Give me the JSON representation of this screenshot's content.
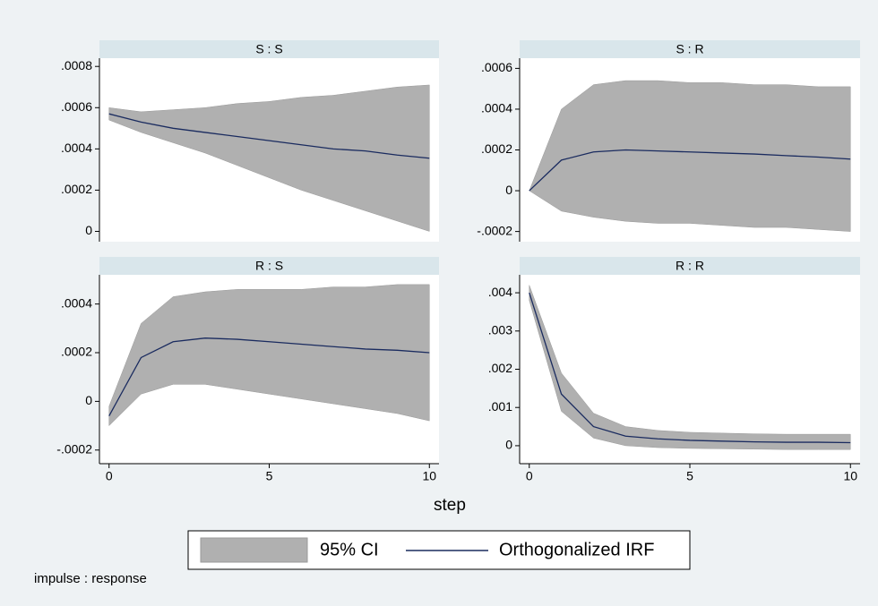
{
  "chart_data": [
    {
      "type": "irf",
      "title": "S : S",
      "x": [
        0,
        1,
        2,
        3,
        4,
        5,
        6,
        7,
        8,
        9,
        10
      ],
      "values": [
        0.00057,
        0.00053,
        0.0005,
        0.00048,
        0.00046,
        0.00044,
        0.00042,
        0.0004,
        0.00039,
        0.00037,
        0.000355
      ],
      "upper": [
        0.0006,
        0.00058,
        0.00059,
        0.0006,
        0.00062,
        0.00063,
        0.00065,
        0.00066,
        0.00068,
        0.0007,
        0.00071
      ],
      "lower": [
        0.00054,
        0.00048,
        0.00043,
        0.00038,
        0.00032,
        0.00026,
        0.0002,
        0.00015,
        0.0001,
        5e-05,
        0
      ],
      "xlim": [
        -0.3,
        10.3
      ],
      "ylim": [
        -5e-05,
        0.00084
      ],
      "yticks": [
        0,
        {
          "value": 0.0002,
          "label": ".0002"
        },
        {
          "value": 0.0004,
          "label": ".0004"
        },
        {
          "value": 0.0006,
          "label": ".0006"
        },
        {
          "value": 0.0008,
          "label": ".0008"
        }
      ]
    },
    {
      "type": "irf",
      "title": "S : R",
      "x": [
        0,
        1,
        2,
        3,
        4,
        5,
        6,
        7,
        8,
        9,
        10
      ],
      "values": [
        0,
        0.00015,
        0.00019,
        0.0002,
        0.000195,
        0.00019,
        0.000185,
        0.00018,
        0.000172,
        0.000165,
        0.000155
      ],
      "upper": [
        0,
        0.0004,
        0.00052,
        0.00054,
        0.00054,
        0.00053,
        0.00053,
        0.00052,
        0.00052,
        0.00051,
        0.00051
      ],
      "lower": [
        0,
        -0.0001,
        -0.00013,
        -0.00015,
        -0.00016,
        -0.00016,
        -0.00017,
        -0.00018,
        -0.00018,
        -0.00019,
        -0.0002
      ],
      "xlim": [
        -0.3,
        10.3
      ],
      "ylim": [
        -0.00025,
        0.00065
      ],
      "yticks": [
        {
          "value": -0.0002,
          "label": "-.0002"
        },
        0,
        {
          "value": 0.0002,
          "label": ".0002"
        },
        {
          "value": 0.0004,
          "label": ".0004"
        },
        {
          "value": 0.0006,
          "label": ".0006"
        }
      ]
    },
    {
      "type": "irf",
      "title": "R : S",
      "x": [
        0,
        1,
        2,
        3,
        4,
        5,
        6,
        7,
        8,
        9,
        10
      ],
      "values": [
        -6e-05,
        0.00018,
        0.000245,
        0.00026,
        0.000255,
        0.000245,
        0.000235,
        0.000225,
        0.000215,
        0.00021,
        0.0002
      ],
      "upper": [
        -2e-05,
        0.00032,
        0.00043,
        0.00045,
        0.00046,
        0.00046,
        0.00046,
        0.00047,
        0.00047,
        0.00048,
        0.00048
      ],
      "lower": [
        -0.0001,
        3e-05,
        7e-05,
        7e-05,
        5e-05,
        3e-05,
        1e-05,
        -1e-05,
        -3e-05,
        -5e-05,
        -8e-05
      ],
      "xlim": [
        -0.3,
        10.3
      ],
      "ylim": [
        -0.000256,
        0.00052
      ],
      "xticks": [
        0,
        5,
        10
      ],
      "yticks": [
        {
          "value": -0.0002,
          "label": "-.0002"
        },
        0,
        {
          "value": 0.0002,
          "label": ".0002"
        },
        {
          "value": 0.0004,
          "label": ".0004"
        }
      ]
    },
    {
      "type": "irf",
      "title": "R : R",
      "x": [
        0,
        1,
        2,
        3,
        4,
        5,
        6,
        7,
        8,
        9,
        10
      ],
      "values": [
        0.004,
        0.00135,
        0.0005,
        0.00025,
        0.00018,
        0.00014,
        0.00012,
        0.0001,
        9e-05,
        9e-05,
        8e-05
      ],
      "upper": [
        0.0042,
        0.0019,
        0.00085,
        0.0005,
        0.0004,
        0.00035,
        0.00033,
        0.00031,
        0.0003,
        0.0003,
        0.0003
      ],
      "lower": [
        0.0038,
        0.0009,
        0.0002,
        0,
        -5e-05,
        -7e-05,
        -8e-05,
        -9e-05,
        -0.0001,
        -0.0001,
        -0.0001
      ],
      "xlim": [
        -0.3,
        10.3
      ],
      "ylim": [
        -0.00047,
        0.00447
      ],
      "xticks": [
        0,
        5,
        10
      ],
      "yticks": [
        0,
        {
          "value": 0.001,
          "label": ".001"
        },
        {
          "value": 0.002,
          "label": ".002"
        },
        {
          "value": 0.003,
          "label": ".003"
        },
        {
          "value": 0.004,
          "label": ".004"
        }
      ]
    }
  ],
  "x_label": "step",
  "legend": [
    {
      "name": "95% CI",
      "color": "#b0b0b0"
    },
    {
      "name": "Orthogonalized IRF",
      "color": "#1a2b5f"
    }
  ],
  "note": "impulse : response"
}
